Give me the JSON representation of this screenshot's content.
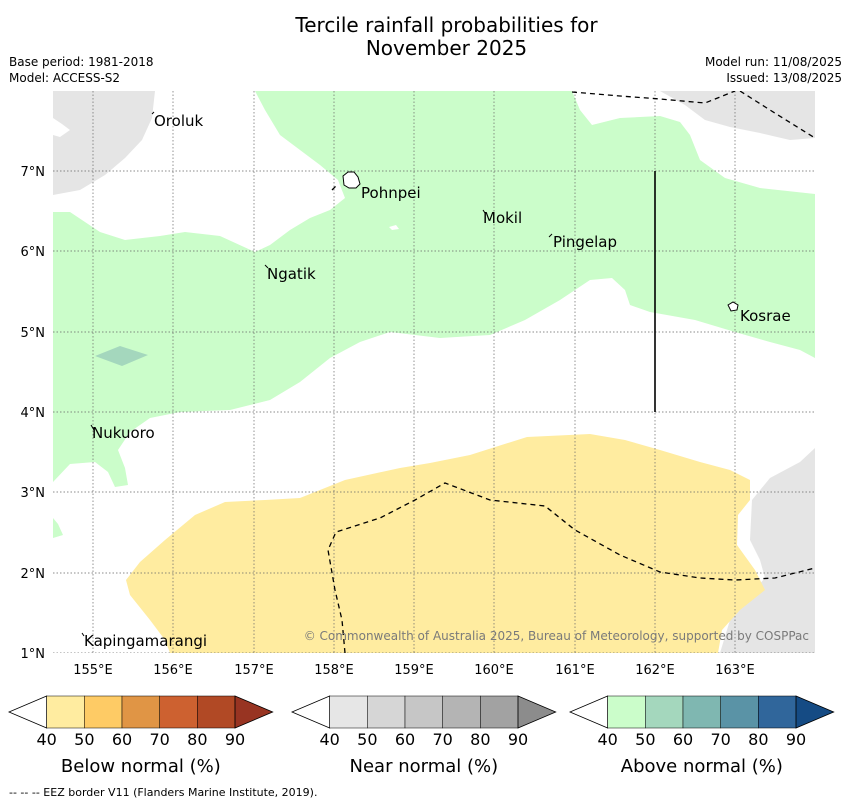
{
  "title_line1": "Tercile rainfall probabilities for",
  "title_line2": "November 2025",
  "meta_left": [
    "Base period: 1981-2018",
    "Model: ACCESS-S2"
  ],
  "meta_right": [
    "Model run: 11/08/2025",
    "Issued: 13/08/2025"
  ],
  "lon_labels": [
    "155°E",
    "156°E",
    "157°E",
    "158°E",
    "159°E",
    "160°E",
    "161°E",
    "162°E",
    "163°E"
  ],
  "lat_labels": [
    "7°N",
    "6°N",
    "5°N",
    "4°N",
    "3°N",
    "2°N",
    "1°N"
  ],
  "places": [
    {
      "name": "Oroluk"
    },
    {
      "name": "Pohnpei"
    },
    {
      "name": "Mokil"
    },
    {
      "name": "Pingelap"
    },
    {
      "name": "Ngatik"
    },
    {
      "name": "Kosrae"
    },
    {
      "name": "Nukuoro"
    },
    {
      "name": "Kapingamarangi"
    }
  ],
  "copyright": "© Commonwealth of Australia 2025, Bureau of Meteorology, supported by COSPPac",
  "colorbars": [
    {
      "title": "Below normal (%)",
      "ticks": [
        "40",
        "50",
        "60",
        "70",
        "80",
        "90"
      ],
      "colors": [
        "#ffffff",
        "#ffeca0",
        "#fecb65",
        "#e09545",
        "#cd6130",
        "#b14925",
        "#983422"
      ]
    },
    {
      "title": "Near normal (%)",
      "ticks": [
        "40",
        "50",
        "60",
        "70",
        "80",
        "90"
      ],
      "colors": [
        "#ffffff",
        "#e6e6e6",
        "#d6d6d6",
        "#c6c6c6",
        "#b4b4b4",
        "#a2a2a2",
        "#8c8c8c"
      ]
    },
    {
      "title": "Above normal (%)",
      "ticks": [
        "40",
        "50",
        "60",
        "70",
        "80",
        "90"
      ],
      "colors": [
        "#ffffff",
        "#cbfdca",
        "#a4d7bd",
        "#7fb7b1",
        "#5a93a6",
        "#30669b",
        "#154b84"
      ]
    }
  ],
  "footnote": "--  --  -- EEZ border V11 (Flanders Marine Institute, 2019).",
  "map_colors": {
    "land_gray": "#e5e5e5",
    "above_light": "#cbfdca",
    "above_mid": "#a4d7bd",
    "below_light": "#ffeca0"
  }
}
